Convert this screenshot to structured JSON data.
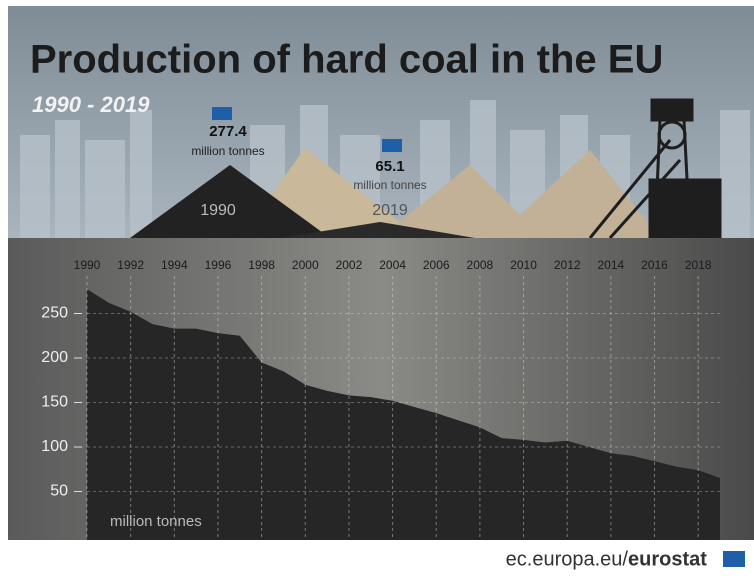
{
  "chart_data": {
    "type": "area",
    "title": "Production of hard coal in the EU",
    "subtitle": "1990 - 2019",
    "annotations": [
      {
        "value": "277.4",
        "unit": "million tonnes",
        "year": "1990"
      },
      {
        "value": "65.1",
        "unit": "million tonnes",
        "year": "2019"
      }
    ],
    "y_label": "million tonnes",
    "x": [
      1990,
      1991,
      1992,
      1993,
      1994,
      1995,
      1996,
      1997,
      1998,
      1999,
      2000,
      2001,
      2002,
      2003,
      2004,
      2005,
      2006,
      2007,
      2008,
      2009,
      2010,
      2011,
      2012,
      2013,
      2014,
      2015,
      2016,
      2017,
      2018,
      2019
    ],
    "values": [
      277.4,
      262,
      252,
      238,
      233,
      233,
      228,
      225,
      195,
      185,
      170,
      163,
      158,
      156,
      152,
      145,
      138,
      130,
      122,
      110,
      108,
      105,
      107,
      100,
      93,
      90,
      84,
      78,
      74,
      65.1
    ],
    "color": "#262626",
    "xlim": [
      1990,
      2019
    ],
    "xticks": [
      1990,
      1992,
      1994,
      1996,
      1998,
      2000,
      2002,
      2004,
      2006,
      2008,
      2010,
      2012,
      2014,
      2016,
      2018
    ],
    "ylim": [
      0,
      300
    ],
    "yticks": [
      50,
      100,
      150,
      200,
      250
    ],
    "grid": true,
    "source": {
      "domain": "ec.europa.eu/",
      "brand": "eurostat"
    }
  }
}
